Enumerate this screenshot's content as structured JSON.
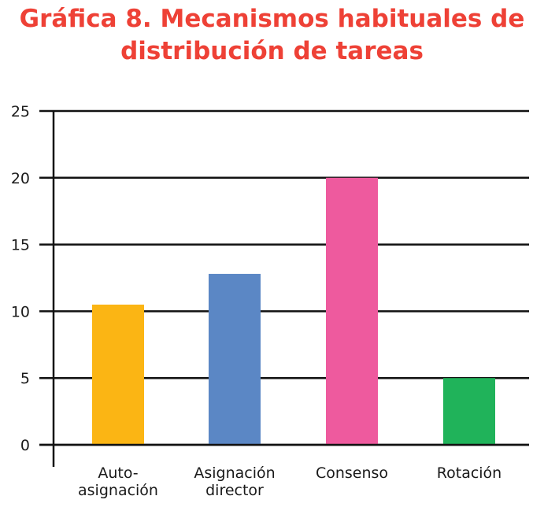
{
  "chart_data": {
    "type": "bar",
    "title_lines": [
      "Gráfica 8. Mecanismos habituales de",
      "distribución de tareas"
    ],
    "categories": [
      [
        "Auto-",
        "asignación"
      ],
      [
        "Asignación",
        "director"
      ],
      [
        "Consenso"
      ],
      [
        "Rotación"
      ]
    ],
    "values": [
      10.5,
      12.8,
      20,
      5
    ],
    "colors": [
      "#fbb514",
      "#5b87c5",
      "#ee5a9e",
      "#20b35a"
    ],
    "ylim": [
      0,
      25
    ],
    "yticks": [
      "0",
      "5",
      "10",
      "15",
      "20",
      "25"
    ],
    "grid": true,
    "legend": "none",
    "title_color": "#ee4136"
  }
}
